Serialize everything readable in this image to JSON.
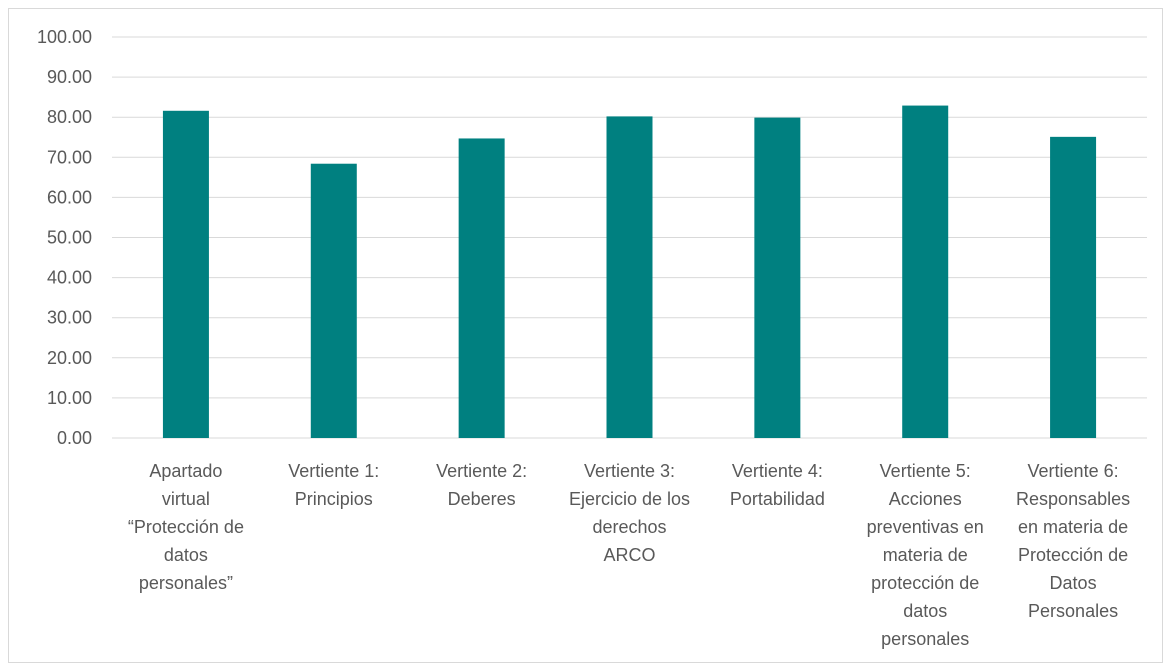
{
  "chart_data": {
    "type": "bar",
    "title": "",
    "xlabel": "",
    "ylabel": "",
    "ylim": [
      0,
      100
    ],
    "yticks": [
      "0.00",
      "10.00",
      "20.00",
      "30.00",
      "40.00",
      "50.00",
      "60.00",
      "70.00",
      "80.00",
      "90.00",
      "100.00"
    ],
    "categories": [
      [
        "Apartado",
        "virtual",
        "“Protección de",
        "datos",
        "personales”"
      ],
      [
        "Vertiente 1:",
        "Principios"
      ],
      [
        "Vertiente 2:",
        "Deberes"
      ],
      [
        "Vertiente 3:",
        "Ejercicio de los",
        "derechos",
        "ARCO"
      ],
      [
        "Vertiente 4:",
        "Portabilidad"
      ],
      [
        "Vertiente 5:",
        "Acciones",
        "preventivas en",
        "materia de",
        "protección de",
        "datos",
        "personales"
      ],
      [
        "Vertiente 6:",
        "Responsables",
        "en materia de",
        "Protección de",
        "Datos",
        "Personales"
      ]
    ],
    "values": [
      81.6,
      68.4,
      74.7,
      80.2,
      79.9,
      82.9,
      75.1
    ],
    "grid": true,
    "legend": "none",
    "bar_color": "#008080"
  }
}
